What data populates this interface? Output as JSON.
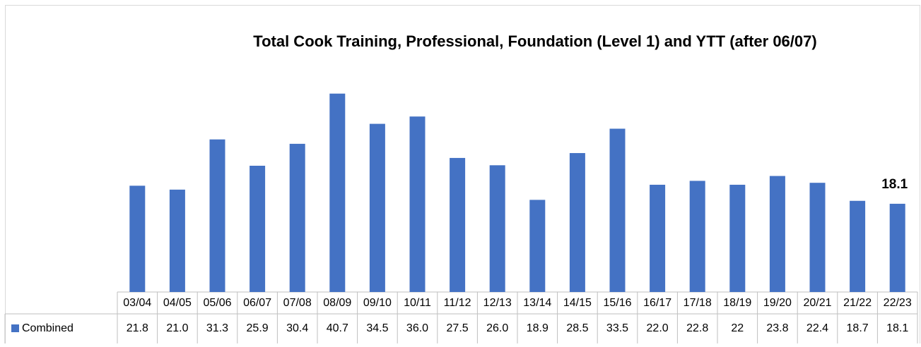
{
  "chart_data": {
    "type": "bar",
    "title": "Total Cook Training, Professional, Foundation (Level 1) and YTT (after 06/07)",
    "categories": [
      "03/04",
      "04/05",
      "05/06",
      "06/07",
      "07/08",
      "08/09",
      "09/10",
      "10/11",
      "11/12",
      "12/13",
      "13/14",
      "14/15",
      "15/16",
      "16/17",
      "17/18",
      "18/19",
      "19/20",
      "20/21",
      "21/22",
      "22/23"
    ],
    "series": [
      {
        "name": "Combined",
        "color": "#4472c4",
        "values": [
          21.8,
          21.0,
          31.3,
          25.9,
          30.4,
          40.7,
          34.5,
          36.0,
          27.5,
          26.0,
          18.9,
          28.5,
          33.5,
          22.0,
          22.8,
          22,
          23.8,
          22.4,
          18.7,
          18.1
        ],
        "value_labels": [
          "21.8",
          "21.0",
          "31.3",
          "25.9",
          "30.4",
          "40.7",
          "34.5",
          "36.0",
          "27.5",
          "26.0",
          "18.9",
          "28.5",
          "33.5",
          "22.0",
          "22.8",
          "22",
          "23.8",
          "22.4",
          "18.7",
          "18.1"
        ]
      }
    ],
    "ylim": [
      0,
      45
    ]
  }
}
